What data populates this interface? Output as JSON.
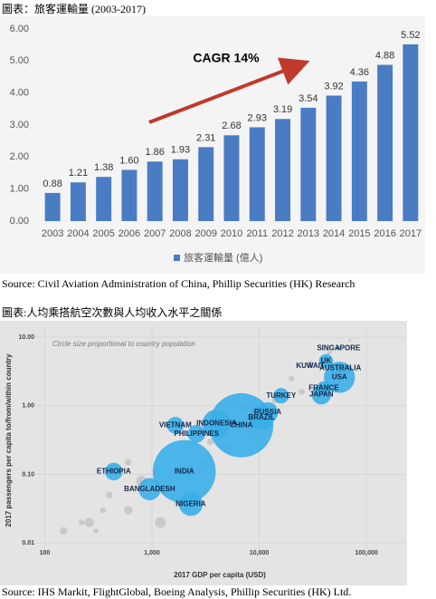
{
  "chart_data": [
    {
      "type": "bar",
      "title": "圖表：旅客運輸量 (2003-2017)",
      "categories": [
        "2003",
        "2004",
        "2005",
        "2006",
        "2007",
        "2008",
        "2009",
        "2010",
        "2011",
        "2012",
        "2013",
        "2014",
        "2015",
        "2016",
        "2017"
      ],
      "series": [
        {
          "name": "旅客運輸量 (億人)",
          "color": "#4a7cc4",
          "values": [
            0.88,
            1.21,
            1.38,
            1.6,
            1.86,
            1.93,
            2.31,
            2.68,
            2.93,
            3.19,
            3.54,
            3.92,
            4.36,
            4.88,
            5.52
          ],
          "value_labels": [
            "0.88",
            "1.21",
            "1.38",
            "1.60",
            "1.86",
            "1.93",
            "2.31",
            "2.68",
            "2.93",
            "3.19",
            "3.54",
            "3.92",
            "4.36",
            "4.88",
            "5.52"
          ]
        }
      ],
      "ylim": [
        0,
        6
      ],
      "yticks": [
        {
          "value": 0,
          "label": "0.00"
        },
        {
          "value": 1,
          "label": "1.00"
        },
        {
          "value": 2,
          "label": "2.00"
        },
        {
          "value": 3,
          "label": "3.00"
        },
        {
          "value": 4,
          "label": "4.00"
        },
        {
          "value": 5,
          "label": "5.00"
        },
        {
          "value": 6,
          "label": "6.00"
        }
      ],
      "annotation": "CAGR 14%",
      "legend": "bottom",
      "source": "Source: Civil Aviation Administration of China, Phillip Securities (HK) Research"
    },
    {
      "type": "scatter",
      "title": "圖表:人均乘搭航空次數與人均收入水平之關係",
      "subtitle": "Circle size proportional to country population",
      "xlabel": "2017 GDP per capita (USD)",
      "ylabel": "2017 passengers per capita to/from/within country",
      "xscale": "log",
      "yscale": "log",
      "xlim": [
        80,
        230000
      ],
      "ylim": [
        0.007,
        14
      ],
      "xticks": [
        100,
        {
          "value": 1000,
          "label": "1,000"
        },
        {
          "value": 10000,
          "label": "10,000"
        },
        {
          "value": 100000,
          "label": "100,000"
        }
      ],
      "yticks": [
        {
          "value": 10,
          "label": "10.00"
        },
        {
          "value": 1,
          "label": "1.00"
        },
        {
          "value": 0.1,
          "label": "0.10"
        },
        {
          "value": 0.01,
          "label": "0.01"
        }
      ],
      "series": [
        {
          "color": "#3aaee8",
          "labels": [
            "SINGAPORE",
            "UK",
            "AUSTRALIA",
            "KUWAIT",
            "FRANCE",
            "USA",
            "JAPAN",
            "TURKEY",
            "RUSSIA",
            "BRAZIL",
            "INDONESIA",
            "CHINA",
            "VIETNAM",
            "PHILIPPINES",
            "INDIA",
            "ETHIOPIA",
            "BANGLADESH",
            "NIGERIA"
          ],
          "x": [
            55000,
            42000,
            57000,
            30000,
            40000,
            56000,
            38000,
            16000,
            12000,
            10500,
            4000,
            6800,
            1650,
            2600,
            2000,
            440,
            950,
            2300
          ],
          "values": [
            6.9,
            4.5,
            3.5,
            3.8,
            1.8,
            2.6,
            1.45,
            1.4,
            0.8,
            0.67,
            0.55,
            0.52,
            0.52,
            0.39,
            0.11,
            0.11,
            0.061,
            0.037
          ],
          "sizes": [
            6,
            66,
            25,
            4,
            67,
            325,
            127,
            81,
            144,
            209,
            265,
            1390,
            95,
            105,
            1340,
            105,
            165,
            191
          ]
        },
        {
          "color": "#c4c4c4",
          "x": [
            150,
            220,
            260,
            400,
            600,
            800,
            1300,
            1800,
            3000,
            3500,
            5000,
            7000,
            9000,
            14000,
            20000,
            25000,
            30000,
            45000,
            65000,
            70000,
            1200,
            600,
            300,
            350
          ],
          "values": [
            0.015,
            0.02,
            0.02,
            0.05,
            0.03,
            0.08,
            0.06,
            0.04,
            0.15,
            0.3,
            0.25,
            0.9,
            0.4,
            1.2,
            2.5,
            1.6,
            4.2,
            6,
            3,
            9,
            0.02,
            0.15,
            0.015,
            0.03
          ],
          "sizes": [
            20,
            10,
            30,
            15,
            25,
            40,
            30,
            35,
            20,
            15,
            30,
            25,
            20,
            15,
            10,
            12,
            8,
            6,
            5,
            3,
            40,
            15,
            8,
            12
          ]
        }
      ],
      "source": "Source: IHS Markit, FlightGlobal, Boeing Analysis, Phillip Securities (HK) Ltd."
    }
  ]
}
